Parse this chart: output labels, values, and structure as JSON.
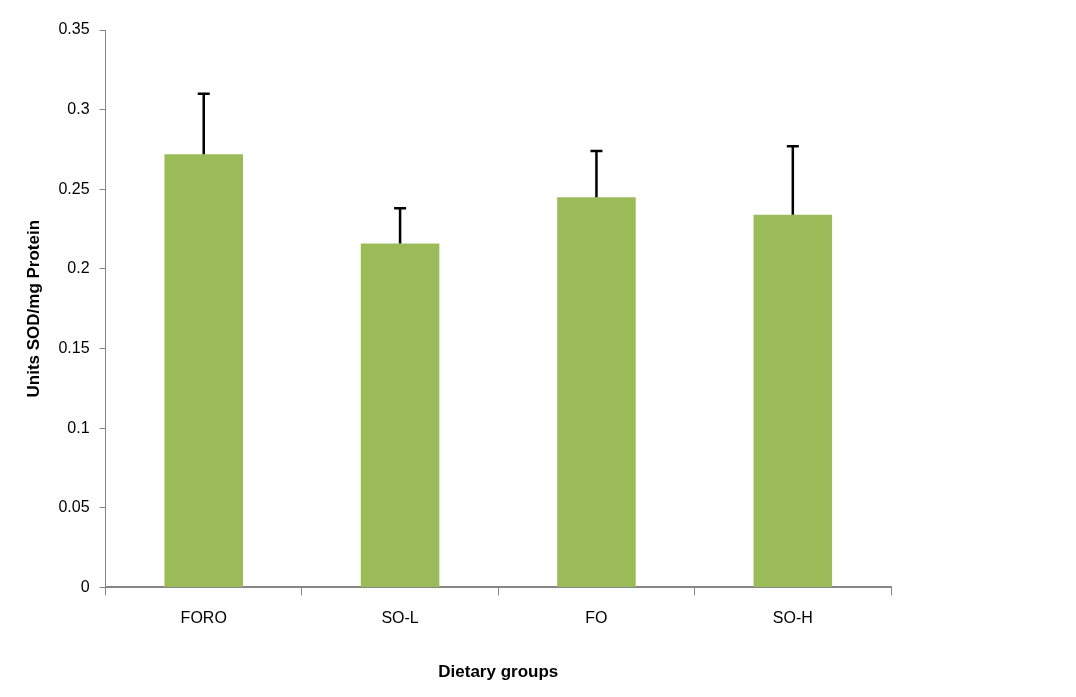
{
  "chart_data": {
    "type": "bar",
    "xlabel": "Dietary groups",
    "ylabel": "Units SOD/mg Protein",
    "categories": [
      "FORO",
      "SO-L",
      "FO",
      "SO-H"
    ],
    "values": [
      0.272,
      0.216,
      0.245,
      0.234
    ],
    "errors": [
      [
        0.272,
        0.31
      ],
      [
        0.216,
        0.238
      ],
      [
        0.245,
        0.274
      ],
      [
        0.234,
        0.277
      ]
    ],
    "color": "#9bbb59",
    "ylim": [
      0,
      0.35
    ],
    "yticks": [
      0,
      0.05,
      0.1,
      0.15,
      0.2,
      0.25,
      0.3,
      0.35
    ],
    "grid": false,
    "legend": false
  }
}
